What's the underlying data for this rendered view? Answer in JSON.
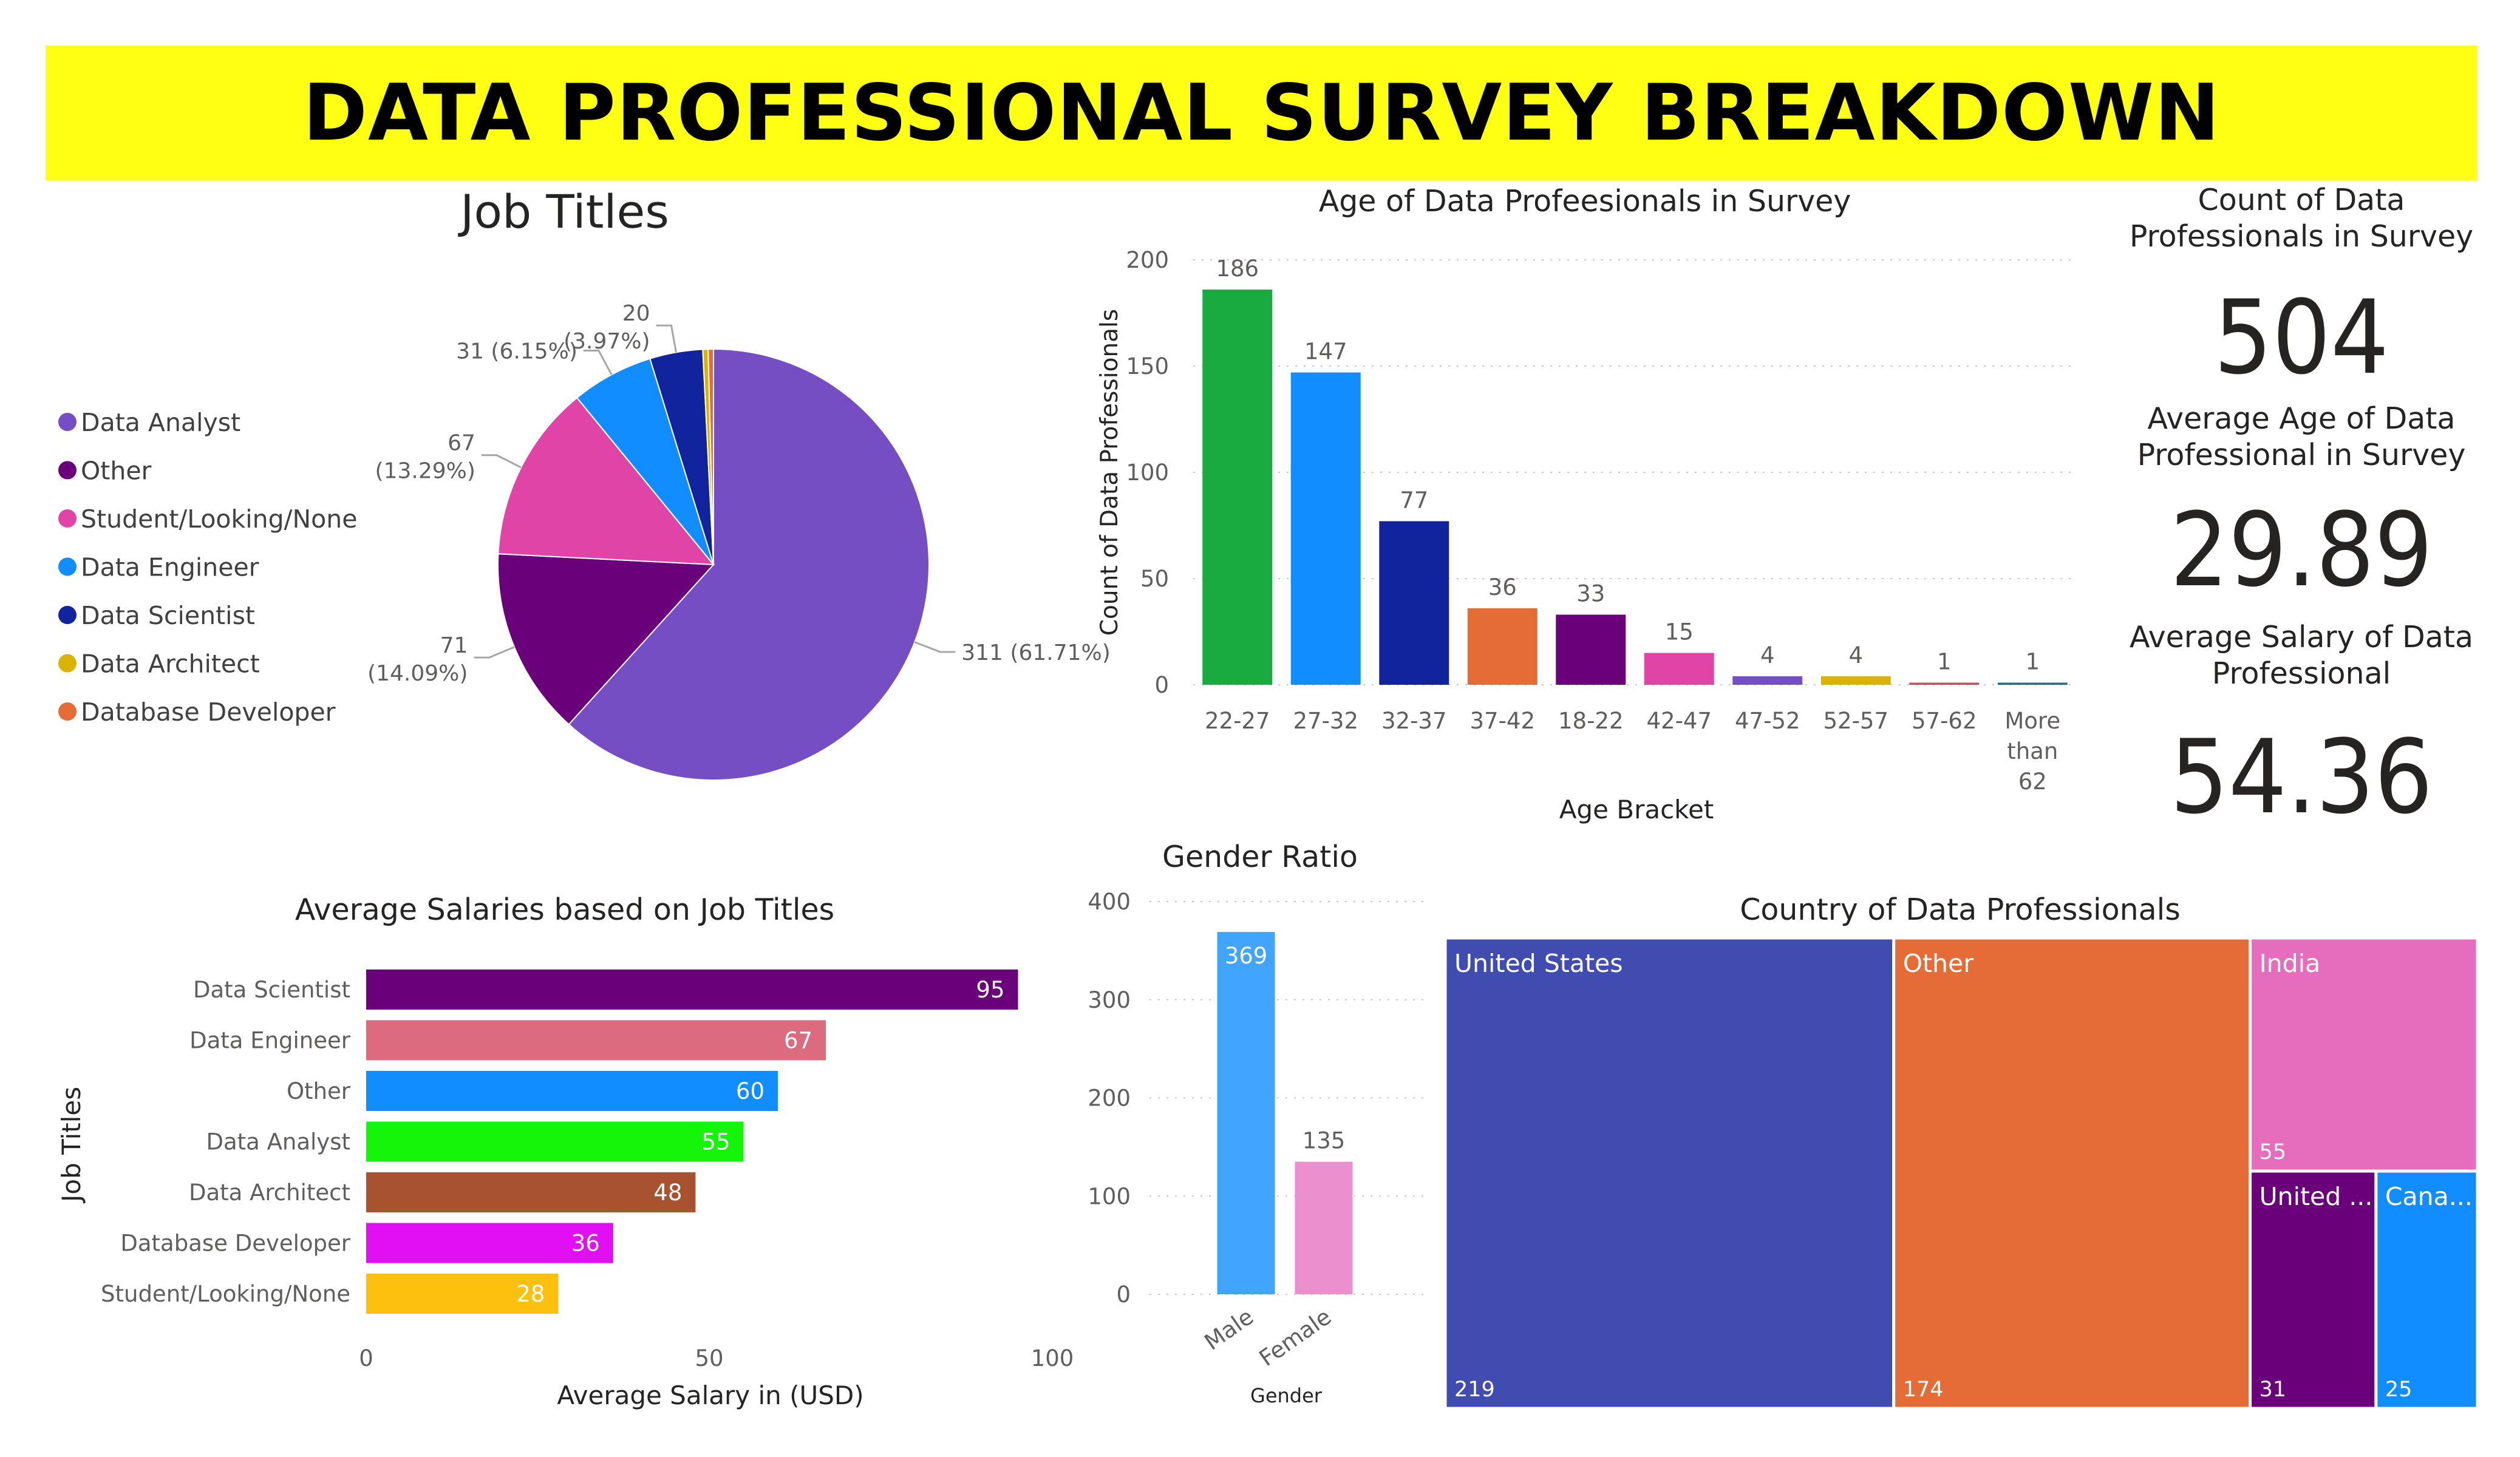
{
  "header": {
    "title": "DATA PROFESSIONAL SURVEY BREAKDOWN"
  },
  "kpis": [
    {
      "label_line1": "Count of Data",
      "label_line2": "Professionals in Survey",
      "value": "504"
    },
    {
      "label_line1": "Average Age of Data",
      "label_line2": "Professional in Survey",
      "value": "29.89"
    },
    {
      "label_line1": "Average Salary of Data",
      "label_line2": "Professional",
      "value": "54.36"
    }
  ],
  "chart_data": [
    {
      "id": "job-titles",
      "type": "pie",
      "title": "Job Titles",
      "legend_position": "left",
      "slices": [
        {
          "name": "Data Analyst",
          "value": 311,
          "label_line1": "311 (61.71%)",
          "label_line2": "",
          "color": "#744ec2"
        },
        {
          "name": "Other",
          "value": 71,
          "label_line1": "71",
          "label_line2": "(14.09%)",
          "color": "#6b007b"
        },
        {
          "name": "Student/Looking/None",
          "value": 67,
          "label_line1": "67",
          "label_line2": "(13.29%)",
          "color": "#e044a7"
        },
        {
          "name": "Data Engineer",
          "value": 31,
          "label_line1": "31 (6.15%)",
          "label_line2": "",
          "color": "#118dff"
        },
        {
          "name": "Data Scientist",
          "value": 20,
          "label_line1": "20",
          "label_line2": "(3.97%)",
          "color": "#12239e"
        },
        {
          "name": "Data Architect",
          "value": 2,
          "label_line1": "",
          "label_line2": "",
          "color": "#d9b300"
        },
        {
          "name": "Database Developer",
          "value": 2,
          "label_line1": "",
          "label_line2": "",
          "color": "#e66c37"
        }
      ]
    },
    {
      "id": "age",
      "type": "bar",
      "title": "Age of Data Profeesionals in Survey",
      "xlabel": "Age Bracket",
      "ylabel": "Count of Data Professionals",
      "ylim": [
        0,
        200
      ],
      "yticks": [
        0,
        50,
        100,
        150,
        200
      ],
      "grid": true,
      "categories": [
        "22-27",
        "27-32",
        "32-37",
        "37-42",
        "18-22",
        "42-47",
        "47-52",
        "52-57",
        "57-62",
        "More than 62"
      ],
      "category_lines": [
        [
          "22-27"
        ],
        [
          "27-32"
        ],
        [
          "32-37"
        ],
        [
          "37-42"
        ],
        [
          "18-22"
        ],
        [
          "42-47"
        ],
        [
          "47-52"
        ],
        [
          "52-57"
        ],
        [
          "57-62"
        ],
        [
          "More",
          "than",
          "62"
        ]
      ],
      "values": [
        186,
        147,
        77,
        36,
        33,
        15,
        4,
        4,
        1,
        1
      ],
      "colors": [
        "#1aab40",
        "#118dff",
        "#12239e",
        "#e66c37",
        "#6b007b",
        "#e044a7",
        "#744ec2",
        "#d9b300",
        "#d64550",
        "#197278"
      ]
    },
    {
      "id": "salaries",
      "type": "bar",
      "orientation": "horizontal",
      "title": "Average Salaries based on Job Titles",
      "xlabel": "Average Salary in (USD)",
      "ylabel": "Job Titles",
      "xlim": [
        0,
        100
      ],
      "xticks": [
        0,
        50,
        100
      ],
      "categories": [
        "Data Scientist",
        "Data Engineer",
        "Other",
        "Data Analyst",
        "Data Architect",
        "Database Developer",
        "Student/Looking/None"
      ],
      "values": [
        95,
        67,
        60,
        55,
        48,
        36,
        28
      ],
      "colors": [
        "#6b007b",
        "#dd6b7f",
        "#118dff",
        "#15f50a",
        "#a9522f",
        "#e20ff4",
        "#fec00f"
      ]
    },
    {
      "id": "gender",
      "type": "bar",
      "title": "Gender Ratio",
      "xlabel": "Gender",
      "ylabel": "",
      "ylim": [
        0,
        400
      ],
      "yticks": [
        0,
        100,
        200,
        300,
        400
      ],
      "grid": true,
      "categories": [
        "Male",
        "Female"
      ],
      "values": [
        369,
        135
      ],
      "colors": [
        "#41a4ff",
        "#ec8fce"
      ]
    },
    {
      "id": "country",
      "type": "treemap",
      "title": "Country of Data Professionals",
      "items": [
        {
          "name": "United States",
          "value": 219,
          "display_name": "United States",
          "color": "#404caf"
        },
        {
          "name": "Other",
          "value": 174,
          "display_name": "Other",
          "color": "#e66c37"
        },
        {
          "name": "India",
          "value": 55,
          "display_name": "India",
          "color": "#e66cbe"
        },
        {
          "name": "United Kingdom",
          "value": 31,
          "display_name": "United ...",
          "color": "#6b007b"
        },
        {
          "name": "Canada",
          "value": 25,
          "display_name": "Cana...",
          "color": "#118dff"
        }
      ]
    }
  ]
}
